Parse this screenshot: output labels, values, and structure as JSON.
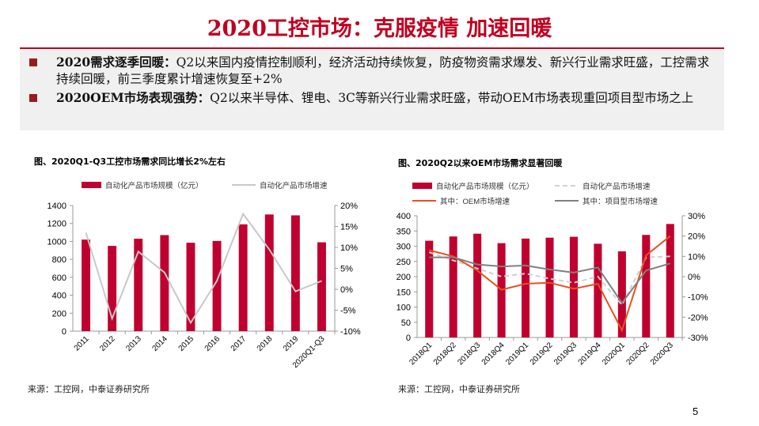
{
  "header": {
    "title": "2020工控市场：克服疫情 加速回暖"
  },
  "bullets": [
    {
      "lead": "2020需求逐季回暖：",
      "text": "Q2以来国内疫情控制顺利，经济活动持续恢复，防疫物资需求爆发、新兴行业需求旺盛，工控需求持续回暖，前三季度累计增速恢复至+2%"
    },
    {
      "lead": "2020OEM市场表现强势：",
      "text": "Q2以来半导体、锂电、3C等新兴行业需求旺盛，带动OEM市场表现重回项目型市场之上"
    }
  ],
  "colors": {
    "accent": "#c00020",
    "bar": "#c0002f",
    "gray_line": "#c8c8c8",
    "oem": "#e8501e",
    "project": "#808080"
  },
  "chart_data": [
    {
      "type": "bar+line",
      "title": "图、2020Q1-Q3工控市场需求同比增长2%左右",
      "categories": [
        "2011",
        "2012",
        "2013",
        "2014",
        "2015",
        "2016",
        "2017",
        "2018",
        "2019",
        "2020Q1-Q3"
      ],
      "series": [
        {
          "name": "自动化产品市场规模（亿元）",
          "type": "bar",
          "axis": "left",
          "values": [
            1020,
            950,
            1030,
            1070,
            985,
            1005,
            1190,
            1300,
            1290,
            990
          ]
        },
        {
          "name": "自动化产品市场增速",
          "type": "line",
          "axis": "right",
          "values": [
            13.5,
            -7,
            9,
            4,
            -8,
            2,
            18,
            9.5,
            -0.5,
            2
          ]
        }
      ],
      "ylim": [
        0,
        1400
      ],
      "yticks": [
        "0",
        "200",
        "400",
        "600",
        "800",
        "1000",
        "1200",
        "1400"
      ],
      "y2lim": [
        -10,
        20
      ],
      "y2ticks": [
        "-10%",
        "-5%",
        "0%",
        "5%",
        "10%",
        "15%",
        "20%"
      ],
      "source": "来源：工控网，中泰证券研究所"
    },
    {
      "type": "bar+line",
      "title": "图、2020Q2以来OEM市场需求显著回暖",
      "categories": [
        "2018Q1",
        "2018Q2",
        "2018Q3",
        "2018Q4",
        "2019Q1",
        "2019Q2",
        "2019Q3",
        "2019Q4",
        "2020Q1",
        "2020Q2",
        "2020Q3"
      ],
      "series": [
        {
          "name": "自动化产品市场规模（亿元）",
          "type": "bar",
          "axis": "left",
          "values": [
            318,
            332,
            341,
            310,
            325,
            328,
            331,
            308,
            283,
            337,
            373
          ]
        },
        {
          "name": "自动化产品市场增速",
          "type": "line",
          "style": "dashed",
          "axis": "right",
          "values": [
            12,
            8,
            4,
            0,
            1.5,
            -1,
            -3,
            0,
            -14,
            9.5,
            10
          ]
        },
        {
          "name": "其中：OEM市场增速",
          "type": "line",
          "axis": "right",
          "values": [
            13,
            10,
            3,
            -6.5,
            -3.5,
            -3,
            -6,
            -3.5,
            -26.5,
            10.5,
            20
          ]
        },
        {
          "name": "其中：项目型市场增速",
          "type": "line",
          "axis": "right",
          "values": [
            9.5,
            9.5,
            6,
            5,
            5.5,
            3.5,
            2,
            4.5,
            -13,
            3,
            6.5
          ]
        }
      ],
      "ylim": [
        0,
        400
      ],
      "yticks": [
        "0",
        "50",
        "100",
        "150",
        "200",
        "250",
        "300",
        "350",
        "400"
      ],
      "y2lim": [
        -30,
        30
      ],
      "y2ticks": [
        "-30%",
        "-20%",
        "-10%",
        "0%",
        "10%",
        "20%",
        "30%"
      ],
      "source": "来源：工控网，中泰证券研究所"
    }
  ],
  "page_number": "5"
}
